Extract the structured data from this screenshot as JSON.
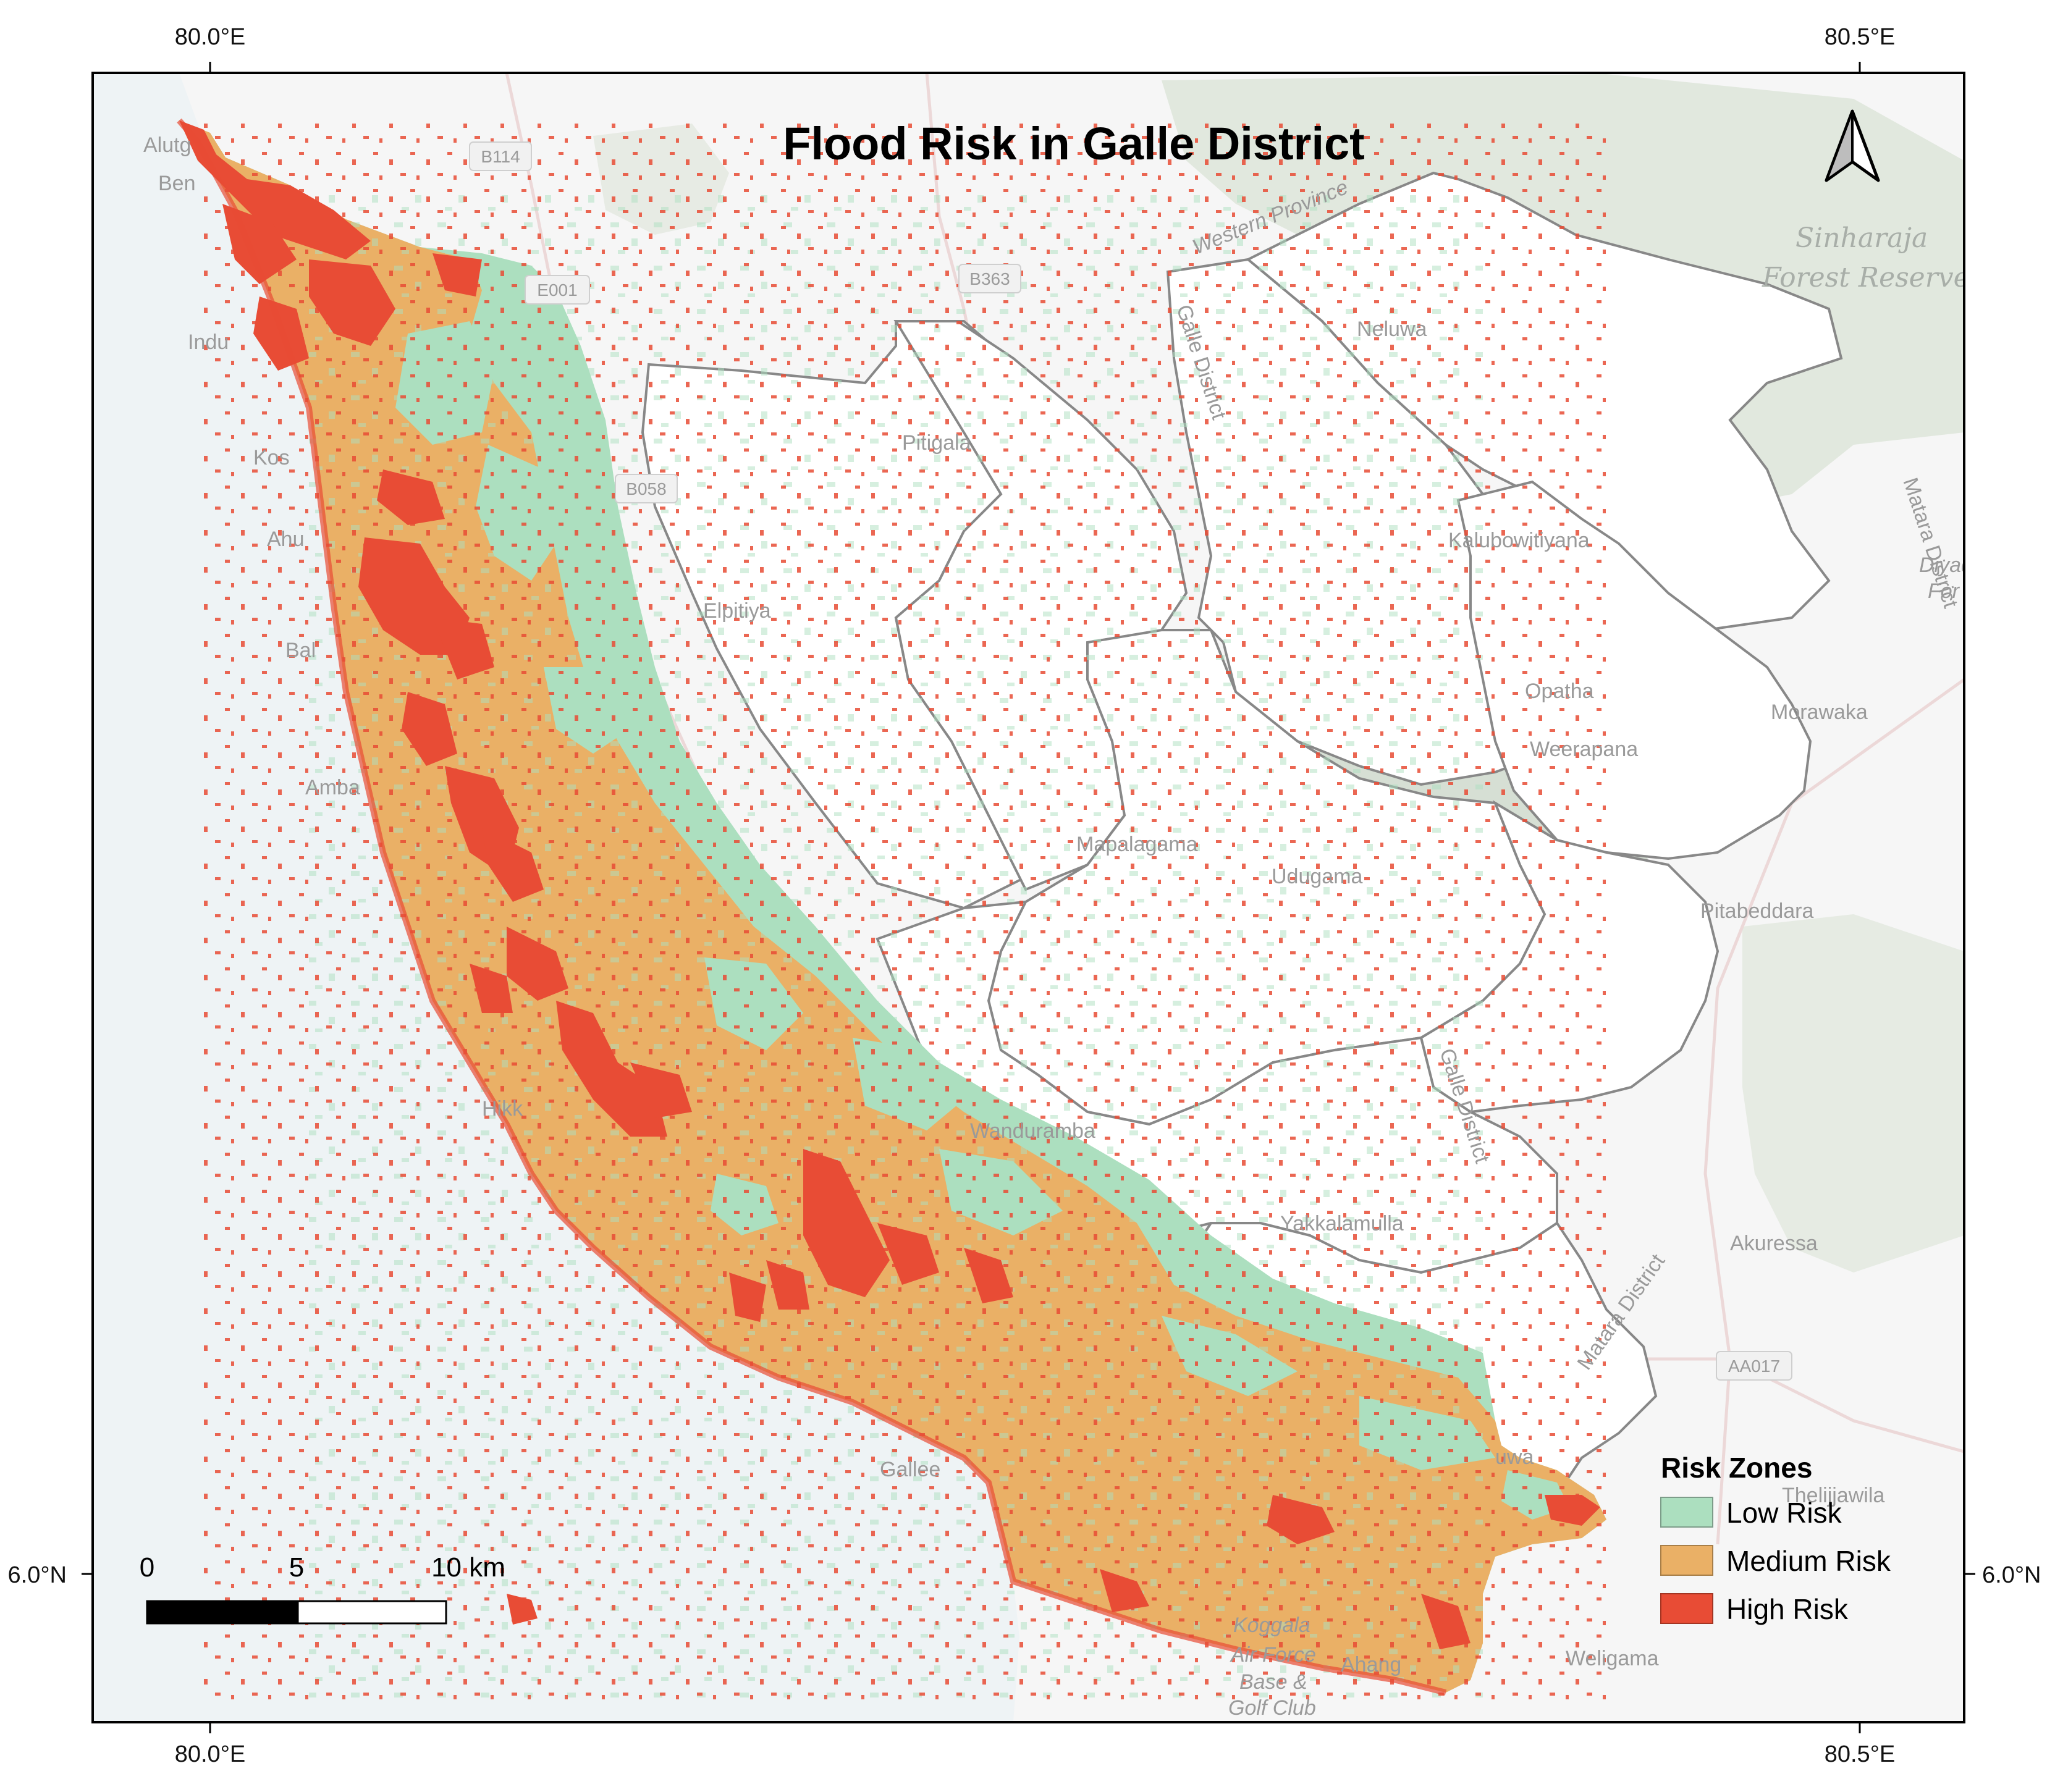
{
  "title": "Flood Risk in Galle District",
  "coordinates": {
    "top": [
      "80.0°E",
      "80.5°E"
    ],
    "bottom": [
      "80.0°E",
      "80.5°E"
    ],
    "left": "6.0°N",
    "right": "6.0°N"
  },
  "places": [
    {
      "name": "Alutg"
    },
    {
      "name": "Ben"
    },
    {
      "name": "Indu"
    },
    {
      "name": "Kos"
    },
    {
      "name": "Ahu"
    },
    {
      "name": "Bal"
    },
    {
      "name": "Amba"
    },
    {
      "name": "Hikk"
    },
    {
      "name": "Gallee"
    },
    {
      "name": "Pitigala"
    },
    {
      "name": "Elpitiya"
    },
    {
      "name": "Neluwa"
    },
    {
      "name": "Kalubowitiyana"
    },
    {
      "name": "Opatha"
    },
    {
      "name": "Weerapana"
    },
    {
      "name": "Morawaka"
    },
    {
      "name": "Mapalagama"
    },
    {
      "name": "Udugama"
    },
    {
      "name": "Pitabeddara"
    },
    {
      "name": "Wanduramba"
    },
    {
      "name": "Yakkalamulla"
    },
    {
      "name": "Akuressa"
    },
    {
      "name": "Thelijjawila"
    },
    {
      "name": "Weligama"
    },
    {
      "name": "Ahang"
    },
    {
      "name": "Koggala"
    },
    {
      "name": "Air Force"
    },
    {
      "name": "Base &"
    },
    {
      "name": "Golf Club"
    },
    {
      "name": "Sinharaja"
    },
    {
      "name": "Forest Reserve"
    },
    {
      "name": "Diyad"
    },
    {
      "name": "For"
    },
    {
      "name": "Western Province"
    },
    {
      "name": "Galle District"
    },
    {
      "name": "Galle District"
    },
    {
      "name": "Matara District"
    },
    {
      "name": "Matara District"
    },
    {
      "name": "uwa"
    }
  ],
  "roads": [
    "B114",
    "B363",
    "E001",
    "B058",
    "AA017"
  ],
  "legend": {
    "title": "Risk Zones",
    "items": [
      {
        "label": "Low Risk",
        "color": "#acdfbf"
      },
      {
        "label": "Medium Risk",
        "color": "#eab066"
      },
      {
        "label": "High Risk",
        "color": "#e84c35"
      }
    ]
  },
  "scale_bar": {
    "labels": [
      "0",
      "5",
      "10 km"
    ]
  },
  "north_arrow": "north-arrow-icon",
  "colors": {
    "sea": "#eef3f5",
    "land": "#f7f7f7",
    "forest": "#d5dfd2",
    "boundary": "#8a8a8a"
  }
}
